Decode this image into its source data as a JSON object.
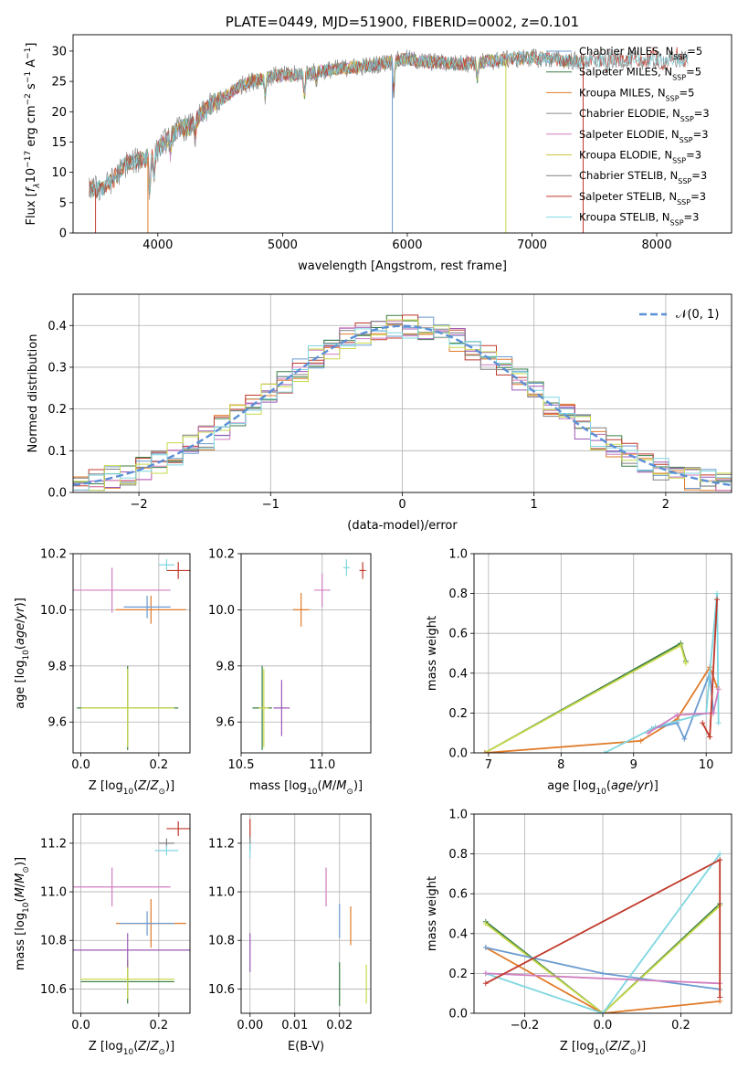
{
  "chart_data": [
    {
      "id": "spectrum",
      "type": "line",
      "title": "PLATE=0449, MJD=51900, FIBERID=0002, z=0.101",
      "xlabel": "wavelength [Angstrom, rest frame]",
      "ylabel": "Flux [f_λ10^-17 erg cm^-2 s^-1 A^-1]",
      "xlim": [
        3320,
        8600
      ],
      "ylim": [
        0,
        32.7
      ],
      "xticks": [
        "4000",
        "5000",
        "6000",
        "7000",
        "8000"
      ],
      "yticks": [
        "0",
        "5",
        "10",
        "15",
        "20",
        "25",
        "30"
      ],
      "grid": false,
      "legend_position": "top-right",
      "continuum": [
        [
          3450,
          7.5
        ],
        [
          3550,
          7.2
        ],
        [
          3650,
          9
        ],
        [
          3750,
          11.5
        ],
        [
          3850,
          12
        ],
        [
          3950,
          12.5
        ],
        [
          4050,
          15
        ],
        [
          4150,
          17
        ],
        [
          4250,
          17.5
        ],
        [
          4350,
          19.5
        ],
        [
          4450,
          21.5
        ],
        [
          4550,
          22.5
        ],
        [
          4650,
          24.2
        ],
        [
          4750,
          25
        ],
        [
          4850,
          25.5
        ],
        [
          4950,
          26
        ],
        [
          5050,
          26
        ],
        [
          5150,
          26.2
        ],
        [
          5250,
          26.5
        ],
        [
          5400,
          27
        ],
        [
          5550,
          27.3
        ],
        [
          5700,
          27.6
        ],
        [
          5850,
          28.2
        ],
        [
          6000,
          28.7
        ],
        [
          6100,
          28.3
        ],
        [
          6200,
          28.2
        ],
        [
          6400,
          27.9
        ],
        [
          6600,
          28.2
        ],
        [
          6800,
          28.6
        ],
        [
          7000,
          28.9
        ],
        [
          7200,
          28.6
        ],
        [
          7400,
          28.3
        ],
        [
          7600,
          28.6
        ],
        [
          7800,
          28.6
        ],
        [
          8000,
          28.4
        ],
        [
          8200,
          28.6
        ]
      ],
      "series": [
        {
          "name": "Chabrier MILES, N_SSP=5",
          "color": "#6b9bd1",
          "x_range": [
            3450,
            7420
          ]
        },
        {
          "name": "Salpeter MILES, N_SSP=5",
          "color": "#3a7d44",
          "x_range": [
            3450,
            7420
          ]
        },
        {
          "name": "Kroupa MILES, N_SSP=5",
          "color": "#e07b2a",
          "x_range": [
            3450,
            7420
          ]
        },
        {
          "name": "Chabrier ELODIE, N_SSP=3",
          "color": "#8a8a8a",
          "x_range": [
            3900,
            6800
          ]
        },
        {
          "name": "Salpeter ELODIE, N_SSP=3",
          "color": "#d07ec0",
          "x_range": [
            3900,
            6800
          ]
        },
        {
          "name": "Kroupa ELODIE, N_SSP=3",
          "color": "#c9c93a",
          "x_range": [
            3900,
            6800
          ]
        },
        {
          "name": "Chabrier STELIB, N_SSP=3",
          "color": "#7f7f7f",
          "x_range": [
            3450,
            8250
          ]
        },
        {
          "name": "Salpeter STELIB, N_SSP=3",
          "color": "#c0392b",
          "x_range": [
            3450,
            8250
          ]
        },
        {
          "name": "Kroupa STELIB, N_SSP=3",
          "color": "#7fd6e0",
          "x_range": [
            3450,
            8250
          ]
        }
      ]
    },
    {
      "id": "residual_hist",
      "type": "line",
      "xlabel": "(data-model)/error",
      "ylabel": "Normed distribution",
      "xlim": [
        -2.5,
        2.5
      ],
      "ylim": [
        0,
        0.475
      ],
      "xticks": [
        "−2",
        "−1",
        "0",
        "1",
        "2"
      ],
      "yticks": [
        "0.0",
        "0.1",
        "0.2",
        "0.3",
        "0.4"
      ],
      "grid": true,
      "legend_position": "top-right",
      "normal_curve_label": "𝒩(0, 1)",
      "normal_curve_color": "#5b8fd6",
      "hist_colors": [
        "#6b9bd1",
        "#e07b2a",
        "#3a7d44",
        "#c0392b",
        "#9b59b6",
        "#d07ec0",
        "#7f7f7f",
        "#c9d94a",
        "#7fd6e0"
      ]
    },
    {
      "id": "age_vs_Z",
      "type": "scatter",
      "xlabel": "Z [log10(Z/Z⊙)]",
      "ylabel": "age [log10(age/yr)]",
      "xlim": [
        -0.02,
        0.28
      ],
      "ylim": [
        9.49,
        10.2
      ],
      "xticks": [
        "0.0",
        "0.2"
      ],
      "yticks": [
        "9.6",
        "9.8",
        "10.0",
        "10.2"
      ],
      "grid": true,
      "points": [
        {
          "x": 0.12,
          "y": 9.65,
          "xerr": 0.13,
          "yerr": 0.15,
          "color": "#3a7d44"
        },
        {
          "x": 0.12,
          "y": 9.65,
          "xerr": 0.12,
          "yerr": 0.14,
          "color": "#c9d94a"
        },
        {
          "x": 0.18,
          "y": 10.0,
          "xerr": 0.09,
          "yerr": 0.05,
          "color": "#e07b2a"
        },
        {
          "x": 0.17,
          "y": 10.01,
          "xerr": 0.06,
          "yerr": 0.04,
          "color": "#6b9bd1"
        },
        {
          "x": 0.08,
          "y": 10.07,
          "xerr": 0.15,
          "yerr": 0.08,
          "color": "#d07ec0"
        },
        {
          "x": 0.25,
          "y": 10.14,
          "xerr": 0.03,
          "yerr": 0.03,
          "color": "#c0392b"
        },
        {
          "x": 0.22,
          "y": 10.16,
          "xerr": 0.02,
          "yerr": 0.02,
          "color": "#7fd6e0"
        }
      ]
    },
    {
      "id": "age_vs_mass",
      "type": "scatter",
      "xlabel": "mass [log10(M/M⊙)]",
      "ylabel": "",
      "xlim": [
        10.5,
        11.3
      ],
      "ylim": [
        9.49,
        10.2
      ],
      "xticks": [
        "10.5",
        "11.0"
      ],
      "yticks": [
        "9.6",
        "9.8",
        "10.0",
        "10.2"
      ],
      "grid": true,
      "points": [
        {
          "x": 10.63,
          "y": 9.65,
          "xerr": 0.06,
          "yerr": 0.15,
          "color": "#3a7d44"
        },
        {
          "x": 10.64,
          "y": 9.65,
          "xerr": 0.03,
          "yerr": 0.14,
          "color": "#c9d94a"
        },
        {
          "x": 10.75,
          "y": 9.65,
          "xerr": 0.05,
          "yerr": 0.1,
          "color": "#9b59b6"
        },
        {
          "x": 10.87,
          "y": 10.0,
          "xerr": 0.05,
          "yerr": 0.06,
          "color": "#e07b2a"
        },
        {
          "x": 11.0,
          "y": 10.07,
          "xerr": 0.05,
          "yerr": 0.06,
          "color": "#d07ec0"
        },
        {
          "x": 11.15,
          "y": 10.15,
          "xerr": 0.02,
          "yerr": 0.03,
          "color": "#7fd6e0"
        },
        {
          "x": 11.25,
          "y": 10.14,
          "xerr": 0.02,
          "yerr": 0.03,
          "color": "#c0392b"
        }
      ]
    },
    {
      "id": "weight_vs_age",
      "type": "line",
      "xlabel": "age [log10(age/yr)]",
      "ylabel": "mass weight",
      "xlim": [
        6.8,
        10.35
      ],
      "ylim": [
        0,
        1.0
      ],
      "xticks": [
        "7",
        "8",
        "9",
        "10"
      ],
      "yticks": [
        "0.0",
        "0.2",
        "0.4",
        "0.6",
        "0.8",
        "1.0"
      ],
      "grid": true,
      "series": [
        {
          "color": "#3a7d44",
          "points": [
            [
              6.95,
              0.0
            ],
            [
              9.65,
              0.55
            ],
            [
              9.72,
              0.46
            ]
          ]
        },
        {
          "color": "#c9d94a",
          "points": [
            [
              6.95,
              0.0
            ],
            [
              9.65,
              0.54
            ],
            [
              9.72,
              0.45
            ]
          ]
        },
        {
          "color": "#e07b2a",
          "points": [
            [
              6.95,
              0.0
            ],
            [
              9.1,
              0.06
            ],
            [
              9.6,
              0.17
            ],
            [
              10.05,
              0.43
            ],
            [
              10.15,
              0.33
            ]
          ]
        },
        {
          "color": "#6b9bd1",
          "points": [
            [
              9.25,
              0.12
            ],
            [
              9.6,
              0.15
            ],
            [
              9.7,
              0.07
            ],
            [
              10.05,
              0.4
            ],
            [
              10.1,
              0.2
            ]
          ]
        },
        {
          "color": "#7fd6e0",
          "points": [
            [
              8.6,
              0.0
            ],
            [
              9.3,
              0.13
            ],
            [
              10.0,
              0.2
            ],
            [
              10.15,
              0.8
            ],
            [
              10.17,
              0.15
            ]
          ]
        },
        {
          "color": "#d07ec0",
          "points": [
            [
              9.2,
              0.1
            ],
            [
              9.6,
              0.19
            ],
            [
              10.1,
              0.2
            ],
            [
              10.17,
              0.32
            ]
          ]
        },
        {
          "color": "#c0392b",
          "points": [
            [
              9.95,
              0.15
            ],
            [
              10.05,
              0.08
            ],
            [
              10.15,
              0.77
            ]
          ]
        }
      ]
    },
    {
      "id": "mass_vs_Z",
      "type": "scatter",
      "xlabel": "Z [log10(Z/Z⊙)]",
      "ylabel": "mass [log10(M/M⊙)]",
      "xlim": [
        -0.02,
        0.28
      ],
      "ylim": [
        10.5,
        11.32
      ],
      "xticks": [
        "0.0",
        "0.2"
      ],
      "yticks": [
        "10.6",
        "10.8",
        "11.0",
        "11.2"
      ],
      "grid": true,
      "points": [
        {
          "x": 0.12,
          "y": 10.63,
          "xerr": 0.12,
          "yerr": 0.09,
          "color": "#3a7d44"
        },
        {
          "x": 0.12,
          "y": 10.64,
          "xerr": 0.12,
          "yerr": 0.08,
          "color": "#c9d94a"
        },
        {
          "x": 0.12,
          "y": 10.76,
          "xerr": 0.19,
          "yerr": 0.07,
          "color": "#9b59b6"
        },
        {
          "x": 0.18,
          "y": 10.87,
          "xerr": 0.09,
          "yerr": 0.1,
          "color": "#e07b2a"
        },
        {
          "x": 0.17,
          "y": 10.87,
          "xerr": 0.07,
          "yerr": 0.05,
          "color": "#6b9bd1"
        },
        {
          "x": 0.08,
          "y": 11.02,
          "xerr": 0.15,
          "yerr": 0.08,
          "color": "#d07ec0"
        },
        {
          "x": 0.25,
          "y": 11.26,
          "xerr": 0.03,
          "yerr": 0.03,
          "color": "#c0392b"
        },
        {
          "x": 0.22,
          "y": 11.2,
          "xerr": 0.02,
          "yerr": 0.02,
          "color": "#7f7f7f"
        },
        {
          "x": 0.22,
          "y": 11.17,
          "xerr": 0.03,
          "yerr": 0.02,
          "color": "#7fd6e0"
        }
      ]
    },
    {
      "id": "mass_vs_ebv",
      "type": "scatter",
      "xlabel": "E(B-V)",
      "ylabel": "",
      "xlim": [
        -0.002,
        0.027
      ],
      "ylim": [
        10.5,
        11.32
      ],
      "xticks": [
        "0.00",
        "0.01",
        "0.02"
      ],
      "yticks": [
        "10.6",
        "10.8",
        "11.0",
        "11.2"
      ],
      "grid": true,
      "points": [
        {
          "x": 0.0,
          "y": 10.75,
          "xerr": 0,
          "yerr": 0.08,
          "color": "#9b59b6"
        },
        {
          "x": 0.0,
          "y": 11.26,
          "xerr": 0,
          "yerr": 0.04,
          "color": "#c0392b"
        },
        {
          "x": 0.0,
          "y": 11.2,
          "xerr": 0,
          "yerr": 0.03,
          "color": "#7f7f7f"
        },
        {
          "x": 0.0,
          "y": 11.17,
          "xerr": 0,
          "yerr": 0.03,
          "color": "#7fd6e0"
        },
        {
          "x": 0.017,
          "y": 11.02,
          "xerr": 0,
          "yerr": 0.08,
          "color": "#d07ec0"
        },
        {
          "x": 0.02,
          "y": 10.88,
          "xerr": 0,
          "yerr": 0.07,
          "color": "#6b9bd1"
        },
        {
          "x": 0.02,
          "y": 10.62,
          "xerr": 0,
          "yerr": 0.09,
          "color": "#3a7d44"
        },
        {
          "x": 0.0225,
          "y": 10.86,
          "xerr": 0,
          "yerr": 0.08,
          "color": "#e07b2a"
        },
        {
          "x": 0.026,
          "y": 10.62,
          "xerr": 0,
          "yerr": 0.08,
          "color": "#c9d94a"
        }
      ]
    },
    {
      "id": "weight_vs_Z",
      "type": "line",
      "xlabel": "Z [log10(Z/Z⊙)]",
      "ylabel": "mass weight",
      "xlim": [
        -0.33,
        0.33
      ],
      "ylim": [
        0,
        1.0
      ],
      "xticks": [
        "−0.2",
        "0.0",
        "0.2"
      ],
      "yticks": [
        "0.0",
        "0.2",
        "0.4",
        "0.6",
        "0.8",
        "1.0"
      ],
      "grid": true,
      "series": [
        {
          "color": "#3a7d44",
          "points": [
            [
              -0.3,
              0.46
            ],
            [
              0.0,
              0.0
            ],
            [
              0.3,
              0.55
            ]
          ]
        },
        {
          "color": "#c9d94a",
          "points": [
            [
              -0.3,
              0.45
            ],
            [
              0.0,
              0.0
            ],
            [
              0.3,
              0.54
            ]
          ]
        },
        {
          "color": "#e07b2a",
          "points": [
            [
              -0.3,
              0.33
            ],
            [
              0.0,
              0.0
            ],
            [
              0.3,
              0.06
            ]
          ]
        },
        {
          "color": "#6b9bd1",
          "points": [
            [
              -0.3,
              0.33
            ],
            [
              0.0,
              0.2
            ],
            [
              0.3,
              0.12
            ]
          ]
        },
        {
          "color": "#7fd6e0",
          "points": [
            [
              -0.3,
              0.2
            ],
            [
              0.0,
              0.0
            ],
            [
              0.3,
              0.8
            ]
          ]
        },
        {
          "color": "#d07ec0",
          "points": [
            [
              -0.3,
              0.2
            ],
            [
              0.3,
              0.15
            ]
          ]
        },
        {
          "color": "#c0392b",
          "points": [
            [
              -0.3,
              0.15
            ],
            [
              0.3,
              0.77
            ],
            [
              0.3,
              0.08
            ]
          ]
        }
      ]
    }
  ]
}
